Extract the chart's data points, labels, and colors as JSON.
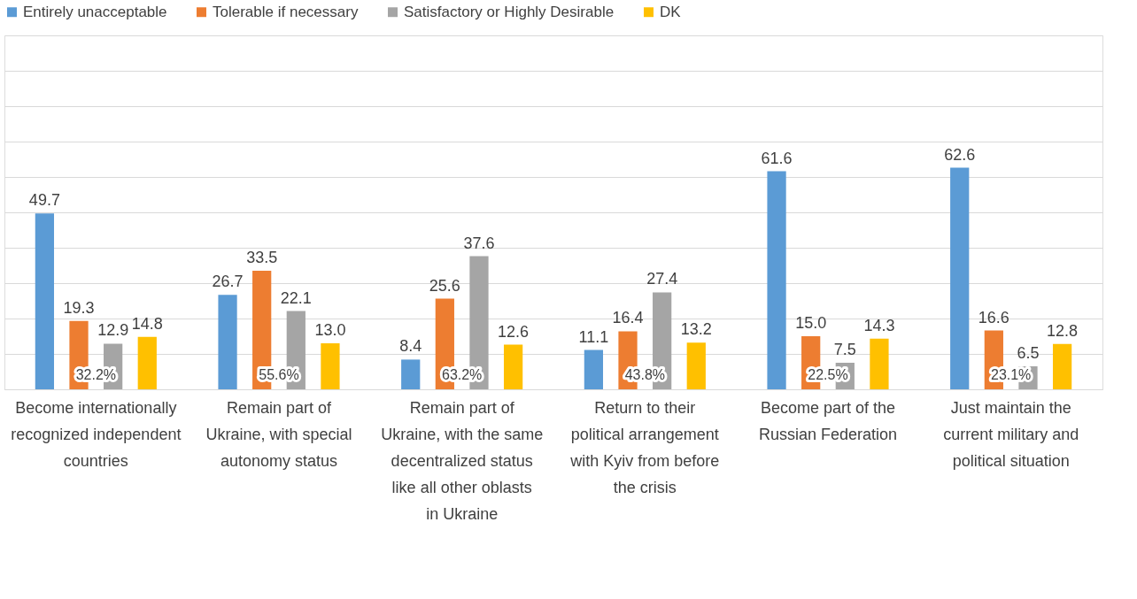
{
  "chart_data": {
    "type": "bar",
    "categories": [
      "Become internationally recognized independent countries",
      "Remain part of Ukraine, with special autonomy status",
      "Remain part of Ukraine, with the same decentralized status like all other oblasts in Ukraine",
      "Return to their political arrangement with Kyiv from before the crisis",
      "Become part of the Russian Federation",
      "Just maintain the current military and political situation"
    ],
    "series": [
      {
        "name": "Entirely unacceptable",
        "color": "#5b9bd5",
        "values": [
          49.7,
          26.7,
          8.4,
          11.1,
          61.6,
          62.6
        ],
        "value_labels": [
          "49.7",
          "26.7",
          "8.4",
          "11.1",
          "61.6",
          "62.6"
        ]
      },
      {
        "name": "Tolerable if necessary",
        "color": "#ed7d31",
        "values": [
          19.3,
          33.5,
          25.6,
          16.4,
          15.0,
          16.6
        ],
        "value_labels": [
          "19.3",
          "33.5",
          "25.6",
          "16.4",
          "15.0",
          "16.6"
        ]
      },
      {
        "name": "Satisfactory or Highly Desirable",
        "color": "#a5a5a5",
        "values": [
          12.9,
          22.1,
          37.6,
          27.4,
          7.5,
          6.5
        ],
        "value_labels": [
          "12.9",
          "22.1",
          "37.6",
          "27.4",
          "7.5",
          "6.5"
        ]
      },
      {
        "name": "DK",
        "color": "#ffc000",
        "values": [
          14.8,
          13.0,
          12.6,
          13.2,
          14.3,
          12.8
        ],
        "value_labels": [
          "14.8",
          "13.0",
          "12.6",
          "13.2",
          "14.3",
          "12.8"
        ]
      }
    ],
    "ylim": [
      0,
      100
    ],
    "tick_labels": "x",
    "grid": "y",
    "legend": "top",
    "annotations": [
      "32.2%",
      "55.6%",
      "63.2%",
      "43.8%",
      "22.5%",
      "23.1%"
    ]
  }
}
